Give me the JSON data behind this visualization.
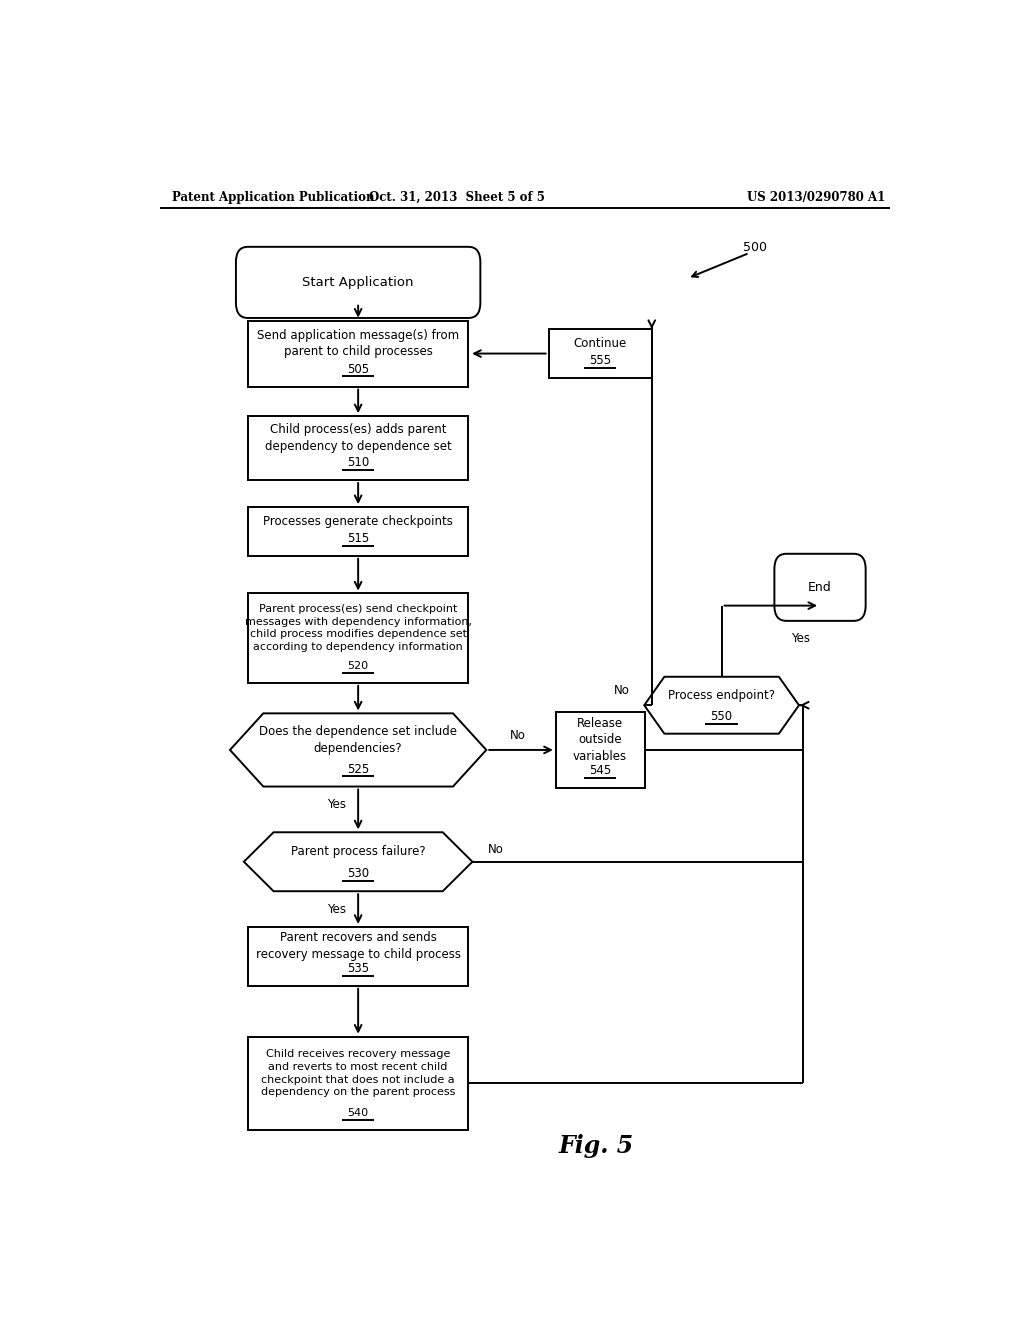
{
  "bg": "#ffffff",
  "lc": "#000000",
  "header_left": "Patent Application Publication",
  "header_mid": "Oct. 31, 2013  Sheet 5 of 5",
  "header_right": "US 2013/0290780 A1",
  "fig_caption": "Fig. 5",
  "ref_num": "500"
}
